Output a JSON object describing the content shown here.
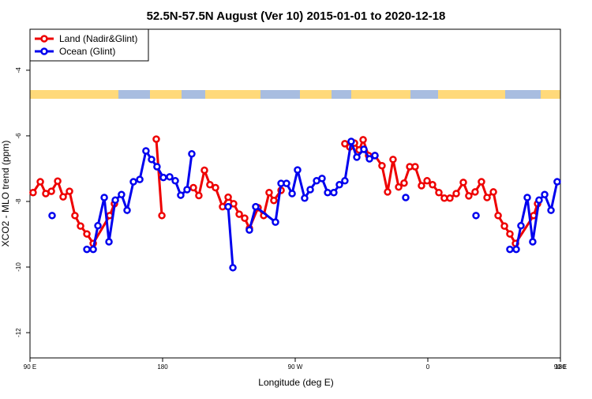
{
  "chart_data": {
    "type": "line",
    "title": "52.5N-57.5N August (Ver 10)   2015-01-01 to 2020-12-18",
    "x_label": "Longitude (deg E)",
    "y_label": "XCO2 - MLO trend (ppm)",
    "xlim": [
      90,
      450
    ],
    "xticks": [
      {
        "value": 90,
        "label": "90 E"
      },
      180,
      {
        "value": 270,
        "label": "90 W"
      },
      {
        "value": 360,
        "label": "0"
      },
      {
        "value": 450,
        "label": "90 E"
      },
      {
        "value": 540,
        "label": "180"
      }
    ],
    "ylim": [
      -12.77,
      -2.75
    ],
    "yticks": [
      -4,
      -6,
      -8,
      -10,
      -12
    ],
    "legend": "top-left",
    "series": [
      {
        "name": "Land (Nadir&Glint)",
        "color": "#ee0000",
        "x": [
          92.1,
          97.0,
          100.7,
          104.5,
          108.8,
          112.5,
          116.8,
          120.5,
          124.3,
          128.6,
          132.9,
          144.1,
          147.3,
          null,
          175.7,
          179.5,
          null,
          200.9,
          204.6,
          208.4,
          212.1,
          215.9,
          220.7,
          224.5,
          228.2,
          232.0,
          235.7,
          238.9,
          244.8,
          248.6,
          252.3,
          255.5,
          260.4,
          null,
          303.7,
          307.0,
          310.2,
          313.4,
          316.1,
          319.8,
          324.1,
          328.9,
          332.7,
          336.4,
          340.2,
          343.9,
          347.7,
          351.4,
          355.7,
          359.5,
          363.2,
          367.5,
          371.2,
          375.0,
          379.3,
          384.1,
          387.8,
          392.1,
          396.4,
          400.2,
          404.5,
          407.7,
          412.0,
          415.7,
          419.5,
          431.8,
          434.5
        ],
        "values": [
          -7.73,
          -7.4,
          -7.76,
          -7.69,
          -7.38,
          -7.86,
          -7.69,
          -8.43,
          -8.75,
          -8.99,
          -9.28,
          -8.43,
          -8.07,
          null,
          -6.1,
          -8.43,
          null,
          -7.58,
          -7.82,
          -7.05,
          -7.49,
          -7.58,
          -8.16,
          -7.87,
          -8.07,
          -8.39,
          -8.51,
          -8.82,
          -8.19,
          -8.43,
          -7.73,
          -7.97,
          -7.66,
          null,
          -6.24,
          -6.34,
          -6.22,
          -6.43,
          -6.12,
          -6.6,
          -6.6,
          -6.91,
          -7.71,
          -6.72,
          -7.56,
          -7.44,
          -6.94,
          -6.94,
          -7.52,
          -7.37,
          -7.49,
          -7.73,
          -7.9,
          -7.9,
          -7.76,
          -7.42,
          -7.83,
          -7.71,
          -7.4,
          -7.88,
          -7.71,
          -8.43,
          -8.75,
          -8.99,
          -9.28,
          -8.43,
          -8.07
        ]
      },
      {
        "name": "Ocean (Glint)",
        "color": "#0000ee",
        "x": [
          105.0,
          null,
          128.6,
          132.9,
          136.1,
          140.4,
          143.6,
          147.9,
          152.1,
          155.9,
          160.2,
          164.5,
          168.7,
          172.5,
          176.2,
          180.5,
          184.8,
          188.6,
          192.3,
          196.6,
          199.8,
          null,
          224.5,
          227.7,
          null,
          238.9,
          243.2,
          256.6,
          260.4,
          264.1,
          267.9,
          271.6,
          276.4,
          280.2,
          284.5,
          288.2,
          292.0,
          296.2,
          300.0,
          303.7,
          308.0,
          311.8,
          316.6,
          320.4,
          324.1,
          null,
          345.0,
          null,
          392.7,
          null,
          415.7,
          420.0,
          423.2,
          427.5,
          431.2,
          435.5,
          439.3,
          443.6,
          447.8
        ],
        "values": [
          -8.43,
          null,
          -9.46,
          -9.46,
          -8.74,
          -7.88,
          -9.23,
          -7.96,
          -7.79,
          -8.27,
          -7.4,
          -7.33,
          -6.46,
          -6.72,
          -6.94,
          -7.27,
          -7.25,
          -7.37,
          -7.81,
          -7.64,
          -6.55,
          null,
          -8.16,
          -10.02,
          null,
          -8.87,
          -8.16,
          -8.63,
          -7.45,
          -7.45,
          -7.76,
          -7.04,
          -7.9,
          -7.64,
          -7.37,
          -7.3,
          -7.73,
          -7.73,
          -7.49,
          -7.37,
          -6.17,
          -6.65,
          -6.41,
          -6.7,
          -6.6,
          null,
          -7.88,
          null,
          -8.43,
          null,
          -9.46,
          -9.46,
          -8.74,
          -7.88,
          -9.23,
          -7.96,
          -7.79,
          -8.27,
          -7.4
        ]
      }
    ]
  }
}
